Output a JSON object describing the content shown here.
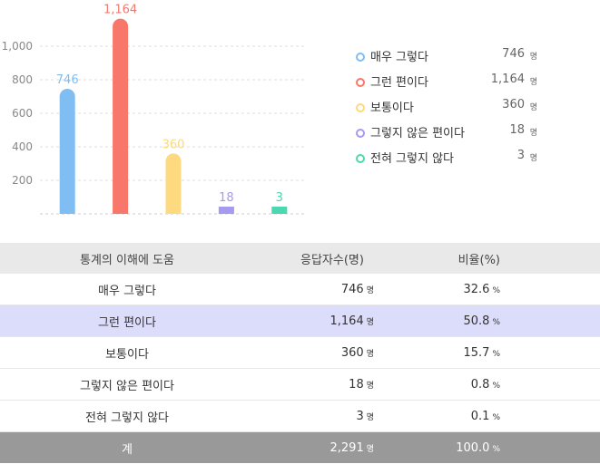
{
  "chart_data": {
    "type": "bar",
    "categories": [
      "매우 그렇다",
      "그런 편이다",
      "보통이다",
      "그렇지 않은 편이다",
      "전혀 그렇지 않다"
    ],
    "values": [
      746,
      1164,
      360,
      18,
      3
    ],
    "value_labels": [
      "746",
      "1,164",
      "360",
      "18",
      "3"
    ],
    "colors": [
      "#7fbdf2",
      "#f9776a",
      "#fdd97f",
      "#a59af0",
      "#4bd8b0"
    ],
    "yticks": [
      "200",
      "400",
      "600",
      "800",
      "1,000"
    ],
    "ytick_values": [
      200,
      400,
      600,
      800,
      1000
    ],
    "ylim": [
      0,
      1200
    ],
    "grid": true,
    "legend_position": "right"
  },
  "legend": [
    {
      "label": "매우 그렇다",
      "value": "746",
      "unit": "명",
      "color": "#7fbdf2"
    },
    {
      "label": "그런 편이다",
      "value": "1,164",
      "unit": "명",
      "color": "#f9776a"
    },
    {
      "label": "보통이다",
      "value": "360",
      "unit": "명",
      "color": "#fdd97f"
    },
    {
      "label": "그렇지 않은 편이다",
      "value": "18",
      "unit": "명",
      "color": "#a59af0"
    },
    {
      "label": "전혀 그렇지 않다",
      "value": "3",
      "unit": "명",
      "color": "#4bd8b0"
    }
  ],
  "table": {
    "headers": [
      "통계의 이해에 도움",
      "응답자수(명)",
      "비율(%)"
    ],
    "rows": [
      {
        "label": "매우 그렇다",
        "count": "746",
        "unit": "명",
        "ratio": "32.6",
        "pct": "%"
      },
      {
        "label": "그런 편이다",
        "count": "1,164",
        "unit": "명",
        "ratio": "50.8",
        "pct": "%"
      },
      {
        "label": "보통이다",
        "count": "360",
        "unit": "명",
        "ratio": "15.7",
        "pct": "%"
      },
      {
        "label": "그렇지 않은 편이다",
        "count": "18",
        "unit": "명",
        "ratio": "0.8",
        "pct": "%"
      },
      {
        "label": "전혀 그렇지 않다",
        "count": "3",
        "unit": "명",
        "ratio": "0.1",
        "pct": "%"
      }
    ],
    "total": {
      "label": "계",
      "count": "2,291",
      "unit": "명",
      "ratio": "100.0",
      "pct": "%"
    }
  }
}
